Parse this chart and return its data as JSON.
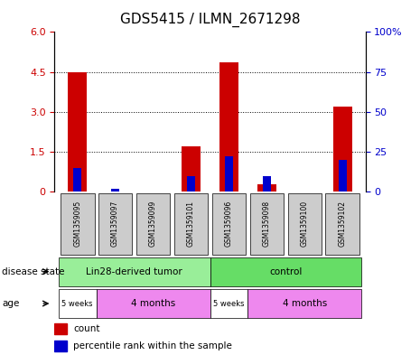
{
  "title": "GDS5415 / ILMN_2671298",
  "samples": [
    "GSM1359095",
    "GSM1359097",
    "GSM1359099",
    "GSM1359101",
    "GSM1359096",
    "GSM1359098",
    "GSM1359100",
    "GSM1359102"
  ],
  "counts": [
    4.5,
    0.0,
    0.0,
    1.7,
    4.87,
    0.28,
    0.0,
    3.2
  ],
  "percentile_ranks": [
    15,
    2,
    0,
    10,
    22,
    10,
    0,
    20
  ],
  "ylim_left": [
    0,
    6
  ],
  "ylim_right": [
    0,
    100
  ],
  "yticks_left": [
    0,
    1.5,
    3.0,
    4.5,
    6.0
  ],
  "yticks_right": [
    0,
    25,
    50,
    75,
    100
  ],
  "bar_color_red": "#cc0000",
  "bar_color_blue": "#0000cc",
  "bar_width": 0.5,
  "disease_state_groups": [
    {
      "label": "Lin28-derived tumor",
      "start": 0,
      "end": 4,
      "color": "#99ee99"
    },
    {
      "label": "control",
      "start": 4,
      "end": 8,
      "color": "#66dd66"
    }
  ],
  "age_groups": [
    {
      "label": "5 weeks",
      "start": 0,
      "end": 1,
      "color": "#ffffff"
    },
    {
      "label": "4 months",
      "start": 1,
      "end": 4,
      "color": "#ee88ee"
    },
    {
      "label": "5 weeks",
      "start": 4,
      "end": 5,
      "color": "#ffffff"
    },
    {
      "label": "4 months",
      "start": 5,
      "end": 8,
      "color": "#ee88ee"
    }
  ],
  "legend_count_color": "#cc0000",
  "legend_pct_color": "#0000cc",
  "sample_box_color": "#cccccc",
  "background_color": "#ffffff"
}
